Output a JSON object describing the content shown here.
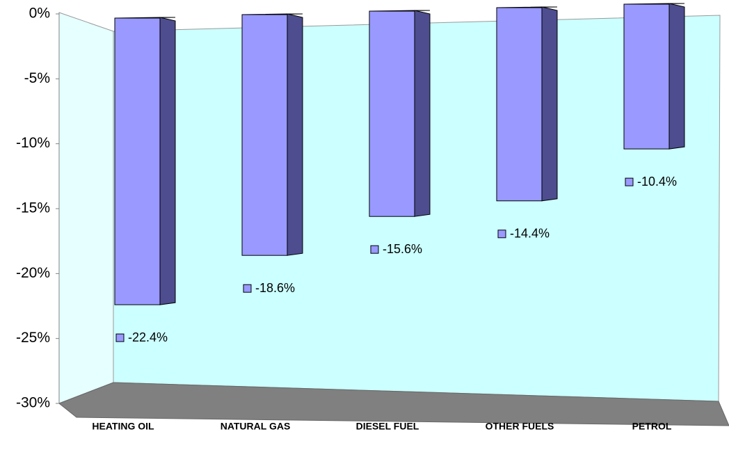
{
  "chart_data": {
    "type": "bar3d",
    "categories": [
      "HEATING OIL",
      "NATURAL GAS",
      "DIESEL FUEL",
      "OTHER FUELS",
      "PETROL"
    ],
    "values": [
      -22.4,
      -18.6,
      -15.6,
      -14.4,
      -10.4
    ],
    "value_labels": [
      "-22.4%",
      "-18.6%",
      "-15.6%",
      "-14.4%",
      "-10.4%"
    ],
    "color": "#9999ff",
    "ylim": [
      -30,
      0
    ],
    "yticks": [
      {
        "value": 0,
        "label": "0%"
      },
      {
        "value": -5,
        "label": "-5%"
      },
      {
        "value": -10,
        "label": "-10%"
      },
      {
        "value": -15,
        "label": "-15%"
      },
      {
        "value": -20,
        "label": "-20%"
      },
      {
        "value": -25,
        "label": "-25%"
      },
      {
        "value": -30,
        "label": "-30%"
      }
    ]
  }
}
